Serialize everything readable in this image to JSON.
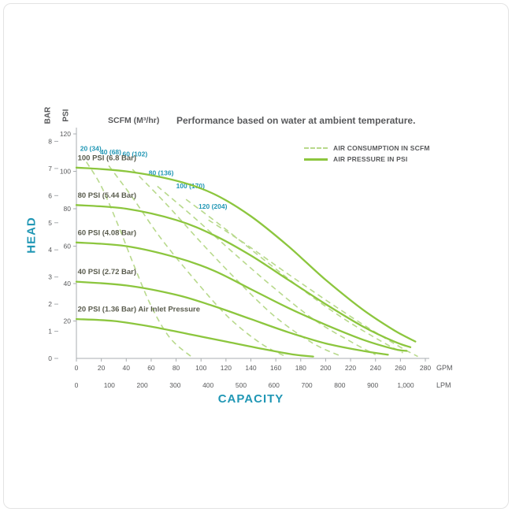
{
  "page": {
    "title": "Performance based on water at ambient temperature.",
    "scfm_header": "SCFM (M³/hr)",
    "head_label": "HEAD",
    "capacity_label": "CAPACITY",
    "bar_label": "BAR",
    "psi_label": "PSI"
  },
  "legend": {
    "consumption": "AIR CONSUMPTION IN SCFM",
    "pressure": "AIR PRESSURE IN PSI"
  },
  "colors": {
    "solid_green": "#8cc63e",
    "dashed_green": "#b8d98c",
    "teal": "#2197b5",
    "text_gray": "#58595b"
  },
  "chart_data": {
    "type": "line",
    "title": "Performance based on water at ambient temperature.",
    "xlabel": "CAPACITY",
    "ylabel": "HEAD",
    "x_axis": {
      "gpm_ticks": [
        0,
        20,
        40,
        60,
        80,
        100,
        120,
        140,
        160,
        180,
        200,
        220,
        240,
        260,
        280
      ],
      "gpm_unit": "GPM",
      "gpm_range": [
        0,
        280
      ],
      "lpm_values": [
        0,
        100,
        200,
        300,
        400,
        500,
        600,
        700,
        800,
        900,
        1000
      ],
      "lpm_labels": [
        "0",
        "100",
        "200",
        "300",
        "400",
        "500",
        "600",
        "700",
        "800",
        "900",
        "1,000"
      ],
      "lpm_unit": "LPM"
    },
    "y_axis": {
      "psi_ticks": [
        20,
        40,
        60,
        80,
        100,
        120
      ],
      "bar_ticks": [
        0,
        1,
        2,
        3,
        4,
        5,
        6,
        7,
        8
      ],
      "psi_range": [
        0,
        120
      ]
    },
    "pressure_curves": [
      {
        "label": "100 PSI (6.8 Bar)",
        "label_at": [
          1,
          106
        ],
        "points": [
          [
            0,
            102
          ],
          [
            40,
            100
          ],
          [
            80,
            95
          ],
          [
            110,
            88
          ],
          [
            140,
            76
          ],
          [
            170,
            60
          ],
          [
            200,
            42
          ],
          [
            230,
            26
          ],
          [
            255,
            15
          ],
          [
            272,
            9
          ]
        ]
      },
      {
        "label": "80 PSI (5.44 Bar)",
        "label_at": [
          1,
          86
        ],
        "points": [
          [
            0,
            82
          ],
          [
            40,
            80
          ],
          [
            80,
            74
          ],
          [
            110,
            66
          ],
          [
            140,
            55
          ],
          [
            170,
            42
          ],
          [
            200,
            29
          ],
          [
            230,
            17
          ],
          [
            255,
            9
          ],
          [
            268,
            6
          ]
        ]
      },
      {
        "label": "60 PSI (4.08 Bar)",
        "label_at": [
          1,
          66
        ],
        "points": [
          [
            0,
            62
          ],
          [
            40,
            60
          ],
          [
            80,
            54
          ],
          [
            110,
            47
          ],
          [
            140,
            37
          ],
          [
            170,
            27
          ],
          [
            200,
            18
          ],
          [
            230,
            10
          ],
          [
            255,
            5
          ],
          [
            265,
            4
          ]
        ]
      },
      {
        "label": "40 PSI (2.72 Bar)",
        "label_at": [
          1,
          45
        ],
        "points": [
          [
            0,
            41
          ],
          [
            40,
            39
          ],
          [
            80,
            34
          ],
          [
            110,
            28
          ],
          [
            140,
            21
          ],
          [
            170,
            14
          ],
          [
            200,
            8
          ],
          [
            230,
            4
          ],
          [
            250,
            2
          ]
        ]
      },
      {
        "label": "20 PSI (1.36 Bar) Air Inlet Pressure",
        "label_at": [
          1,
          25
        ],
        "points": [
          [
            0,
            21
          ],
          [
            30,
            20
          ],
          [
            60,
            17
          ],
          [
            90,
            13
          ],
          [
            120,
            9
          ],
          [
            150,
            5
          ],
          [
            175,
            2
          ],
          [
            190,
            1
          ]
        ]
      }
    ],
    "consumption_curves": [
      {
        "label": "20 (34)",
        "label_at": [
          3,
          111
        ],
        "points": [
          [
            8,
            105
          ],
          [
            20,
            92
          ],
          [
            33,
            72
          ],
          [
            46,
            50
          ],
          [
            60,
            28
          ],
          [
            75,
            11
          ],
          [
            92,
            1
          ]
        ]
      },
      {
        "label": "40 (68)",
        "label_at": [
          19,
          109
        ],
        "points": [
          [
            26,
            103
          ],
          [
            45,
            86
          ],
          [
            68,
            64
          ],
          [
            95,
            42
          ],
          [
            122,
            22
          ],
          [
            148,
            8
          ],
          [
            168,
            1
          ]
        ]
      },
      {
        "label": "60 (102)",
        "label_at": [
          37,
          108
        ],
        "points": [
          [
            45,
            101
          ],
          [
            70,
            84
          ],
          [
            100,
            62
          ],
          [
            130,
            41
          ],
          [
            160,
            22
          ],
          [
            190,
            8
          ],
          [
            213,
            1
          ]
        ]
      },
      {
        "label": "80 (136)",
        "label_at": [
          58,
          98
        ],
        "points": [
          [
            65,
            92
          ],
          [
            95,
            75
          ],
          [
            125,
            57
          ],
          [
            158,
            38
          ],
          [
            190,
            21
          ],
          [
            220,
            9
          ],
          [
            240,
            2
          ]
        ]
      },
      {
        "label": "100 (170)",
        "label_at": [
          80,
          91
        ],
        "points": [
          [
            88,
            85
          ],
          [
            118,
            70
          ],
          [
            150,
            53
          ],
          [
            185,
            35
          ],
          [
            215,
            21
          ],
          [
            245,
            9
          ],
          [
            262,
            3
          ]
        ]
      },
      {
        "label": "120 (204)",
        "label_at": [
          98,
          80
        ],
        "points": [
          [
            106,
            74
          ],
          [
            136,
            61
          ],
          [
            170,
            45
          ],
          [
            205,
            29
          ],
          [
            235,
            16
          ],
          [
            260,
            6
          ],
          [
            274,
            1
          ]
        ]
      }
    ]
  }
}
